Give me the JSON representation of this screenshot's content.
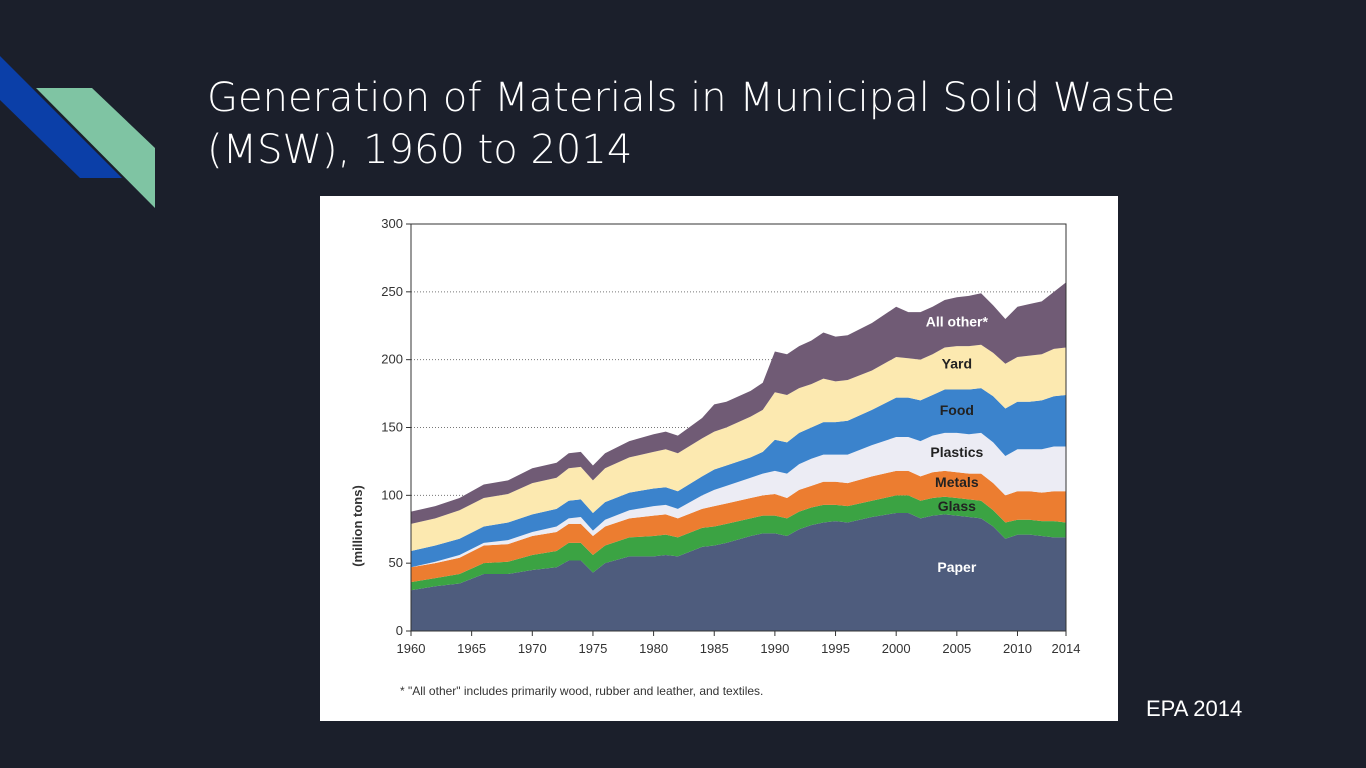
{
  "slide": {
    "title": "Generation of Materials in Municipal Solid Waste (MSW), 1960 to 2014",
    "source": "EPA 2014",
    "footnote": "* \"All other\" includes primarily wood, rubber and leather, and textiles.",
    "colors": {
      "background": "#1b1f2b",
      "deco_blue": "#0b3fa8",
      "deco_green": "#7fc4a3"
    }
  },
  "chart_data": {
    "type": "area",
    "stacked": true,
    "ylabel": "(million tons)",
    "ylim": [
      0,
      300
    ],
    "xlim": [
      1960,
      2014
    ],
    "x_ticks": [
      1960,
      1965,
      1970,
      1975,
      1980,
      1985,
      1990,
      1995,
      2000,
      2005,
      2010,
      2014
    ],
    "y_ticks": [
      0,
      50,
      100,
      150,
      200,
      250,
      300
    ],
    "grid": "horizontal dotted",
    "x": [
      1960,
      1962,
      1964,
      1966,
      1968,
      1970,
      1972,
      1973,
      1974,
      1975,
      1976,
      1978,
      1980,
      1981,
      1982,
      1984,
      1985,
      1986,
      1988,
      1989,
      1990,
      1991,
      1992,
      1993,
      1994,
      1995,
      1996,
      1998,
      2000,
      2001,
      2002,
      2003,
      2004,
      2005,
      2006,
      2007,
      2008,
      2009,
      2010,
      2011,
      2012,
      2013,
      2014
    ],
    "series": [
      {
        "name": "Paper",
        "color": "#4e5c7d",
        "values": [
          30,
          33,
          35,
          42,
          42,
          45,
          47,
          52,
          52,
          43,
          50,
          55,
          55,
          56,
          55,
          62,
          63,
          65,
          70,
          72,
          72,
          70,
          75,
          78,
          80,
          81,
          80,
          84,
          87,
          87,
          83,
          85,
          86,
          85,
          84,
          83,
          77,
          68,
          71,
          71,
          70,
          69,
          69
        ]
      },
      {
        "name": "Glass",
        "color": "#3ba343",
        "values": [
          6,
          6,
          7,
          8,
          9,
          11,
          12,
          13,
          13,
          13,
          13,
          14,
          15,
          15,
          14,
          14,
          14,
          14,
          13,
          13,
          13,
          13,
          13,
          13,
          13,
          12,
          12,
          12,
          13,
          13,
          13,
          13,
          13,
          13,
          13,
          13,
          12,
          12,
          11,
          11,
          11,
          12,
          11
        ]
      },
      {
        "name": "Metals",
        "color": "#ec7d30",
        "values": [
          11,
          11,
          12,
          13,
          13,
          14,
          14,
          14,
          14,
          14,
          14,
          14,
          15,
          15,
          14,
          14,
          15,
          15,
          15,
          15,
          16,
          15,
          16,
          16,
          17,
          17,
          17,
          18,
          18,
          18,
          18,
          19,
          19,
          19,
          19,
          20,
          20,
          20,
          21,
          21,
          21,
          22,
          23
        ]
      },
      {
        "name": "Plastics",
        "color": "#ececf4",
        "values": [
          0,
          1,
          2,
          2,
          3,
          3,
          4,
          4,
          5,
          4,
          5,
          6,
          7,
          7,
          7,
          10,
          12,
          13,
          15,
          16,
          17,
          18,
          19,
          20,
          20,
          20,
          21,
          23,
          25,
          25,
          26,
          27,
          28,
          29,
          29,
          30,
          30,
          29,
          31,
          31,
          32,
          33,
          33
        ]
      },
      {
        "name": "Food",
        "color": "#3b83cc",
        "values": [
          12,
          12,
          12,
          12,
          13,
          13,
          13,
          13,
          13,
          13,
          13,
          13,
          13,
          13,
          13,
          14,
          15,
          15,
          15,
          16,
          23,
          23,
          23,
          23,
          24,
          24,
          25,
          26,
          29,
          29,
          30,
          30,
          32,
          32,
          33,
          33,
          34,
          35,
          35,
          35,
          36,
          37,
          38
        ]
      },
      {
        "name": "Yard",
        "color": "#fce9b0",
        "values": [
          20,
          20,
          21,
          21,
          21,
          23,
          23,
          24,
          24,
          24,
          25,
          26,
          27,
          28,
          28,
          28,
          28,
          28,
          30,
          31,
          35,
          35,
          33,
          32,
          32,
          30,
          30,
          29,
          30,
          29,
          30,
          30,
          31,
          32,
          32,
          32,
          32,
          33,
          33,
          34,
          34,
          35,
          35
        ]
      },
      {
        "name": "All other*",
        "color": "#705b75",
        "values": [
          9,
          9,
          9,
          10,
          10,
          11,
          11,
          11,
          11,
          11,
          11,
          12,
          13,
          13,
          13,
          15,
          20,
          19,
          19,
          20,
          30,
          30,
          31,
          32,
          34,
          33,
          33,
          35,
          37,
          34,
          35,
          35,
          35,
          36,
          37,
          38,
          35,
          33,
          37,
          38,
          39,
          42,
          48
        ]
      }
    ],
    "band_labels": [
      {
        "series": "All other*",
        "text": "All other*",
        "color": "#ffffff",
        "x": 2005,
        "y": 228
      },
      {
        "series": "Yard",
        "text": "Yard",
        "color": "#222222",
        "x": 2005,
        "y": 197
      },
      {
        "series": "Food",
        "text": "Food",
        "color": "#222222",
        "x": 2005,
        "y": 163
      },
      {
        "series": "Plastics",
        "text": "Plastics",
        "color": "#222222",
        "x": 2005,
        "y": 132
      },
      {
        "series": "Metals",
        "text": "Metals",
        "color": "#222222",
        "x": 2005,
        "y": 110
      },
      {
        "series": "Glass",
        "text": "Glass",
        "color": "#222222",
        "x": 2005,
        "y": 92
      },
      {
        "series": "Paper",
        "text": "Paper",
        "color": "#ffffff",
        "x": 2005,
        "y": 47
      }
    ]
  }
}
